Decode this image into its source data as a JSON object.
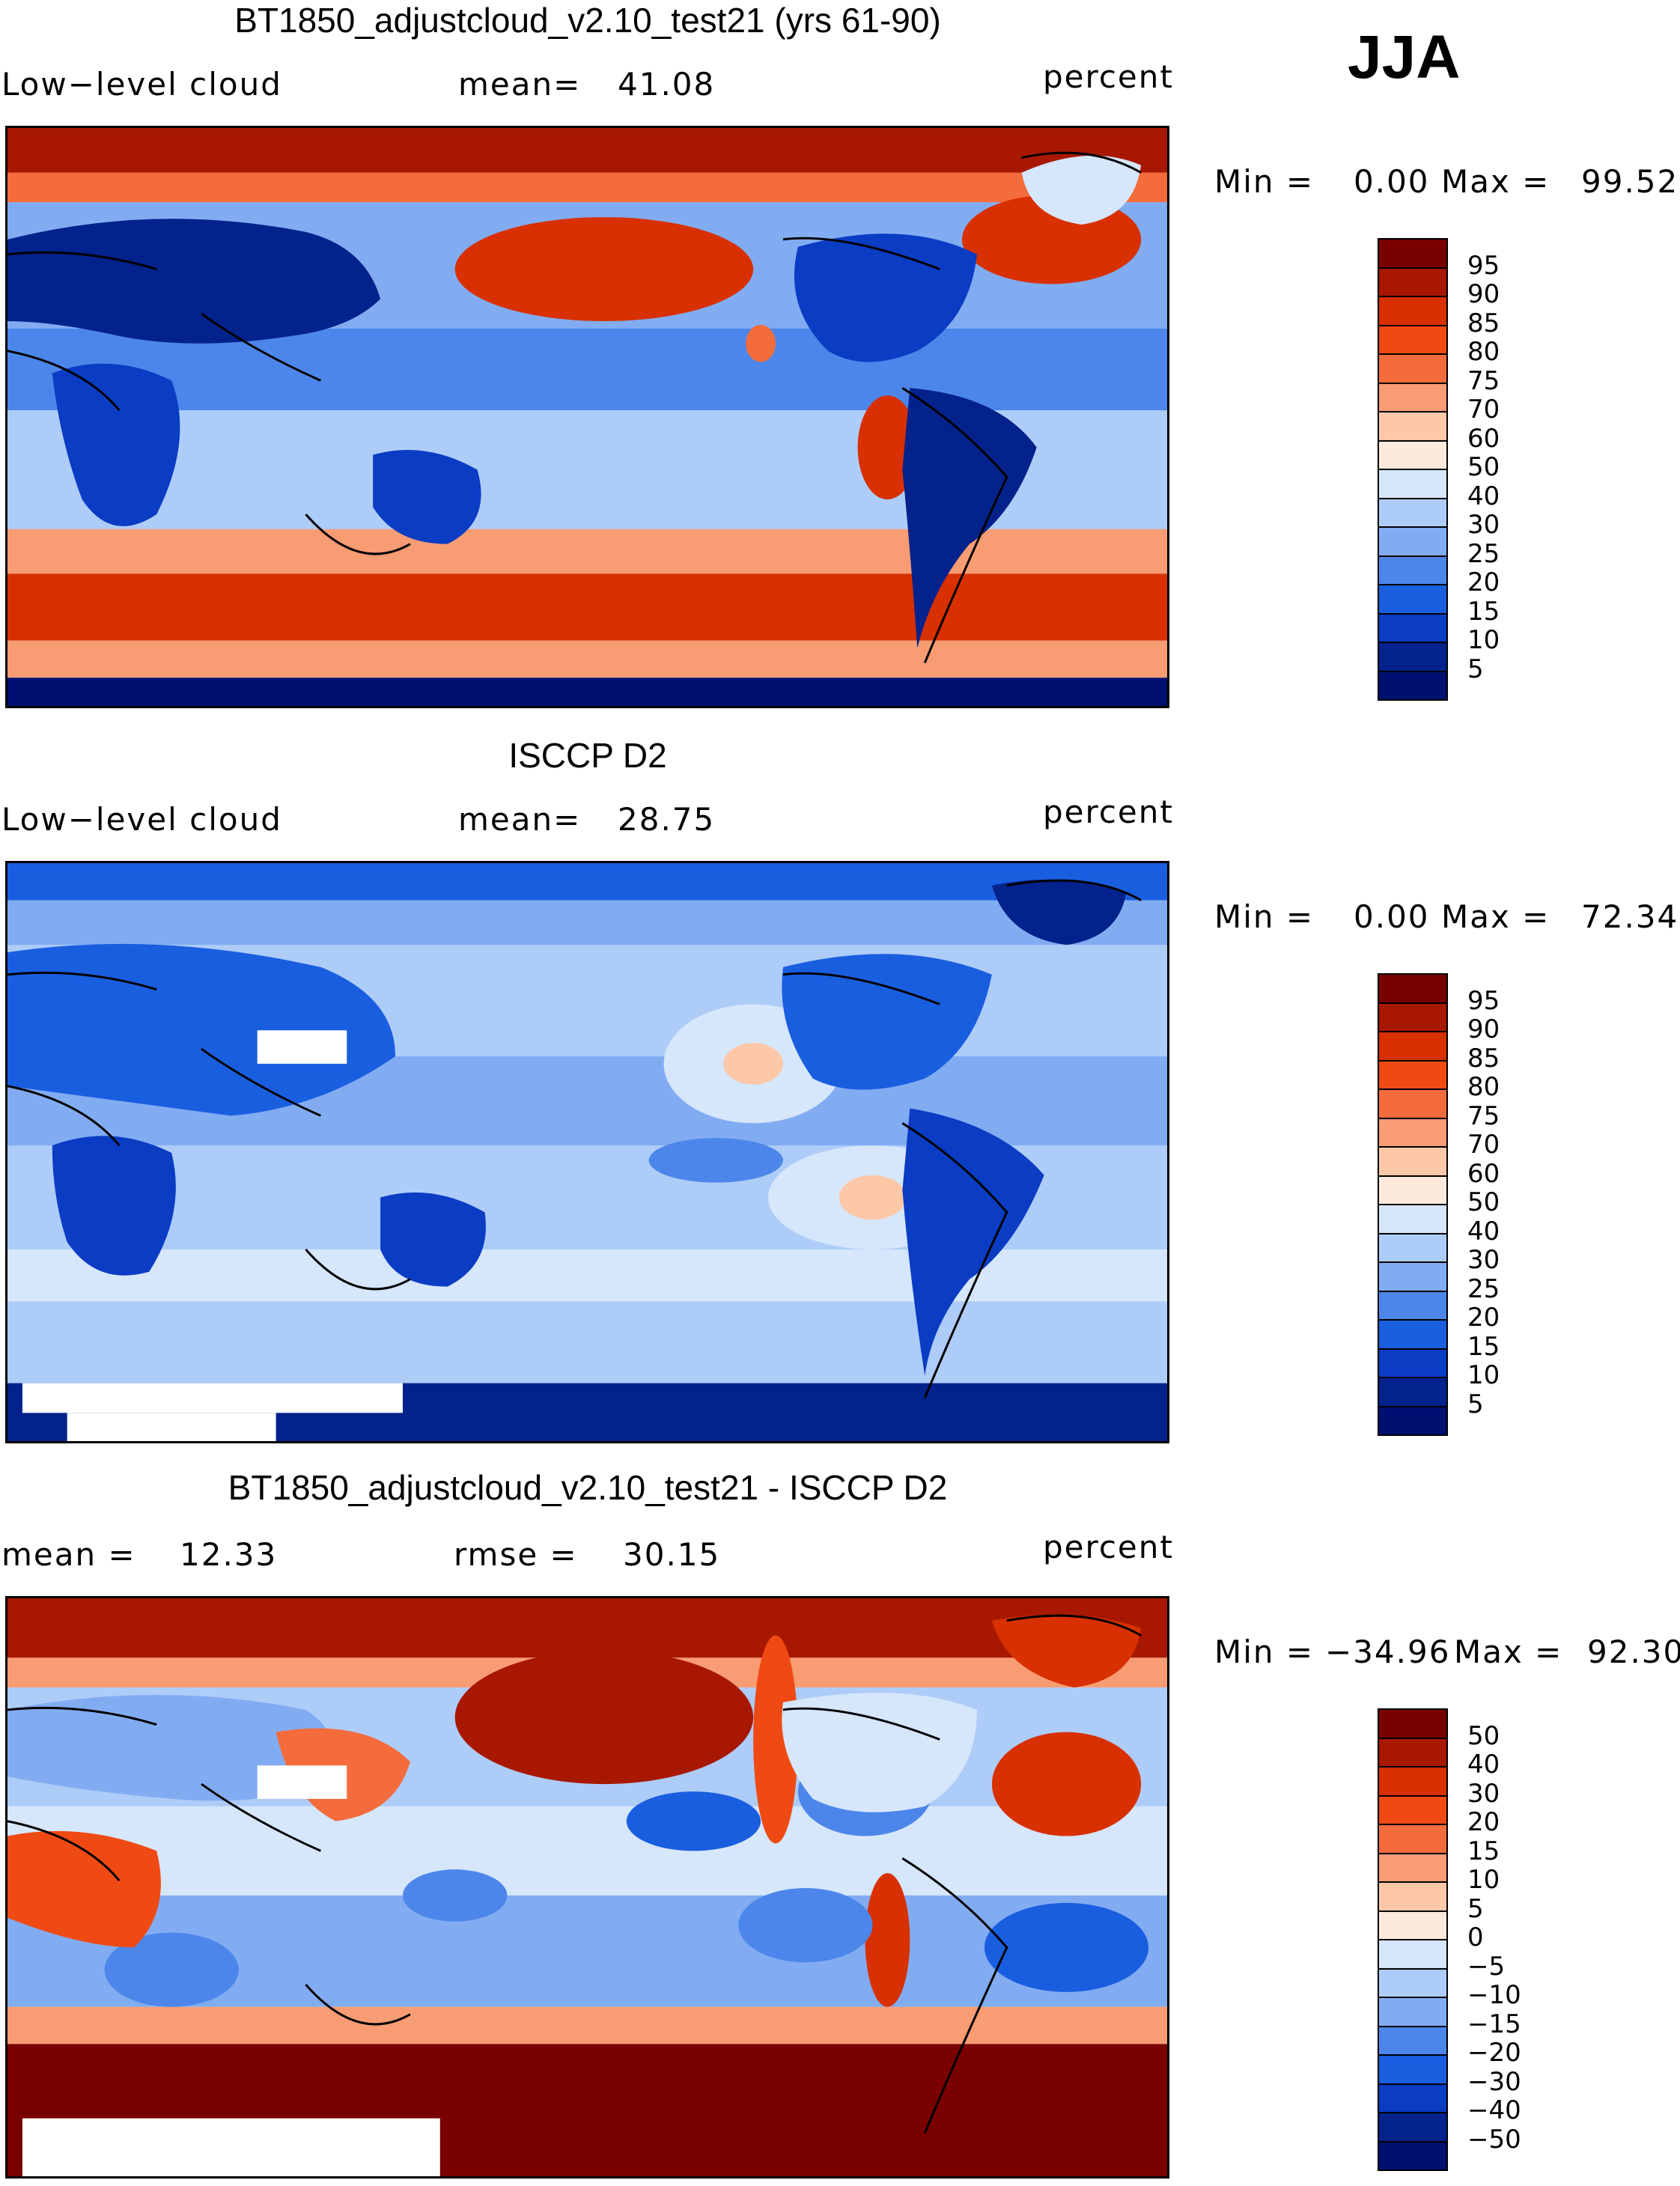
{
  "season": "JJA",
  "unit": "percent",
  "panels": [
    {
      "title": "BT1850_adjustcloud_v2.10_test21 (yrs 61-90)",
      "field": "Low−level cloud",
      "stat1_label": "mean=",
      "stat1_value": "41.08",
      "stat2_label": "",
      "stat2_value": "",
      "min_label": "Min =",
      "min_value": "0.00",
      "max_label": "Max =",
      "max_value": "99.52",
      "colorbar_ticks": [
        "95",
        "90",
        "85",
        "80",
        "75",
        "70",
        "60",
        "50",
        "40",
        "30",
        "25",
        "20",
        "15",
        "10",
        "5"
      ],
      "colors": [
        "#7a0000",
        "#a81800",
        "#d83000",
        "#f04a14",
        "#f46c3c",
        "#f89c74",
        "#fcc8a8",
        "#fdeadc",
        "#d6e6fb",
        "#aeccf8",
        "#82acf2",
        "#4c86ea",
        "#1a5ee0",
        "#0a3cc4",
        "#03228c",
        "#001070"
      ]
    },
    {
      "title": "ISCCP D2",
      "field": "Low−level cloud",
      "stat1_label": "mean=",
      "stat1_value": "28.75",
      "stat2_label": "",
      "stat2_value": "",
      "min_label": "Min =",
      "min_value": "0.00",
      "max_label": "Max =",
      "max_value": "72.34",
      "colorbar_ticks": [
        "95",
        "90",
        "85",
        "80",
        "75",
        "70",
        "60",
        "50",
        "40",
        "30",
        "25",
        "20",
        "15",
        "10",
        "5"
      ],
      "colors": [
        "#7a0000",
        "#a81800",
        "#d83000",
        "#f04a14",
        "#f46c3c",
        "#f89c74",
        "#fcc8a8",
        "#fdeadc",
        "#d6e6fb",
        "#aeccf8",
        "#82acf2",
        "#4c86ea",
        "#1a5ee0",
        "#0a3cc4",
        "#03228c",
        "#001070"
      ]
    },
    {
      "title": "BT1850_adjustcloud_v2.10_test21 - ISCCP D2",
      "field": "",
      "stat1_label": "mean =",
      "stat1_value": "12.33",
      "stat2_label": "rmse =",
      "stat2_value": "30.15",
      "min_label": "Min =",
      "min_value": "−34.96",
      "max_label": "Max =",
      "max_value": "92.30",
      "colorbar_ticks": [
        "50",
        "40",
        "30",
        "20",
        "15",
        "10",
        "5",
        "0",
        "−5",
        "−10",
        "−15",
        "−20",
        "−30",
        "−40",
        "−50"
      ],
      "colors": [
        "#7a0000",
        "#a81800",
        "#d83000",
        "#f04a14",
        "#f46c3c",
        "#f89c74",
        "#fcc8a8",
        "#fdeadc",
        "#d6e6fb",
        "#aeccf8",
        "#82acf2",
        "#4c86ea",
        "#1a5ee0",
        "#0a3cc4",
        "#03228c",
        "#001070"
      ]
    }
  ]
}
